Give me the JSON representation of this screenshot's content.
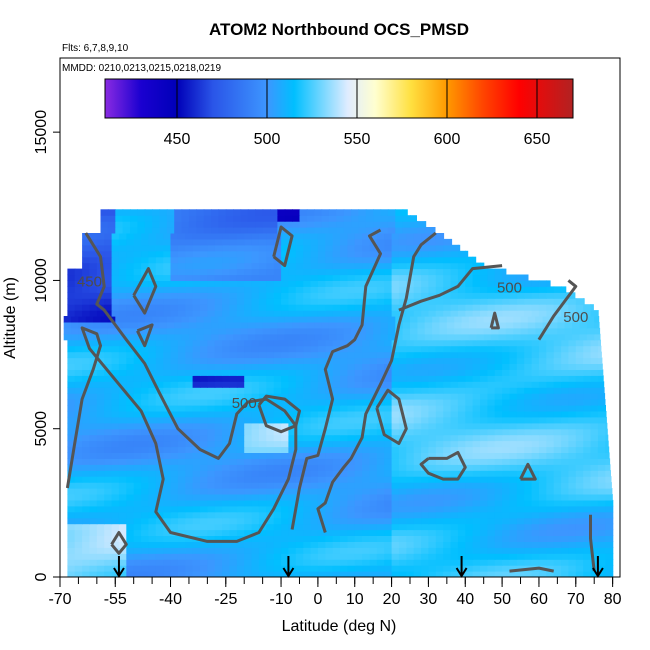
{
  "chart_data": {
    "type": "heatmap",
    "title": "ATOM2 Northbound OCS_PMSD",
    "annotations": [
      "Flts: 6,7,8,9,10",
      "MMDD: 0210,0213,0215,0218,0219"
    ],
    "xlabel": "Latitude (deg N)",
    "ylabel": "Altitude (m)",
    "xlim": [
      -70,
      82
    ],
    "ylim": [
      0,
      17500
    ],
    "x_ticks": [
      -70,
      -55,
      -40,
      -25,
      -10,
      0,
      10,
      20,
      30,
      40,
      50,
      60,
      70,
      80
    ],
    "x_tick_labels": [
      "-70",
      "-55",
      "-40",
      "-25",
      "-10",
      "0",
      "10",
      "20",
      "30",
      "40",
      "50",
      "60",
      "70",
      "80"
    ],
    "y_ticks": [
      0,
      5000,
      10000,
      15000
    ],
    "y_tick_labels": [
      "0",
      "5000",
      "10000",
      "15000"
    ],
    "colorbar": {
      "range": [
        410,
        670
      ],
      "ticks": [
        450,
        500,
        550,
        600,
        650
      ],
      "tick_labels": [
        "450",
        "500",
        "550",
        "600",
        "650"
      ],
      "stops": [
        {
          "v": 410,
          "c": "#8a2be2"
        },
        {
          "v": 430,
          "c": "#1a00d0"
        },
        {
          "v": 450,
          "c": "#0000b8"
        },
        {
          "v": 470,
          "c": "#2a55e8"
        },
        {
          "v": 500,
          "c": "#3d96ff"
        },
        {
          "v": 515,
          "c": "#00bfff"
        },
        {
          "v": 545,
          "c": "#e0ecff"
        },
        {
          "v": 560,
          "c": "#ffffd0"
        },
        {
          "v": 580,
          "c": "#ffe040"
        },
        {
          "v": 600,
          "c": "#ff9900"
        },
        {
          "v": 620,
          "c": "#ff4500"
        },
        {
          "v": 640,
          "c": "#ff0000"
        },
        {
          "v": 670,
          "c": "#b22222"
        }
      ]
    },
    "contour_labels": [
      {
        "text": "450",
        "x": -62,
        "y": 9800
      },
      {
        "text": "500",
        "x": -20,
        "y": 5700
      },
      {
        "text": "500",
        "x": 52,
        "y": 9600
      },
      {
        "text": "500",
        "x": 70,
        "y": 8600
      }
    ],
    "flight_markers_lat": [
      -54,
      -8,
      39,
      76
    ]
  }
}
